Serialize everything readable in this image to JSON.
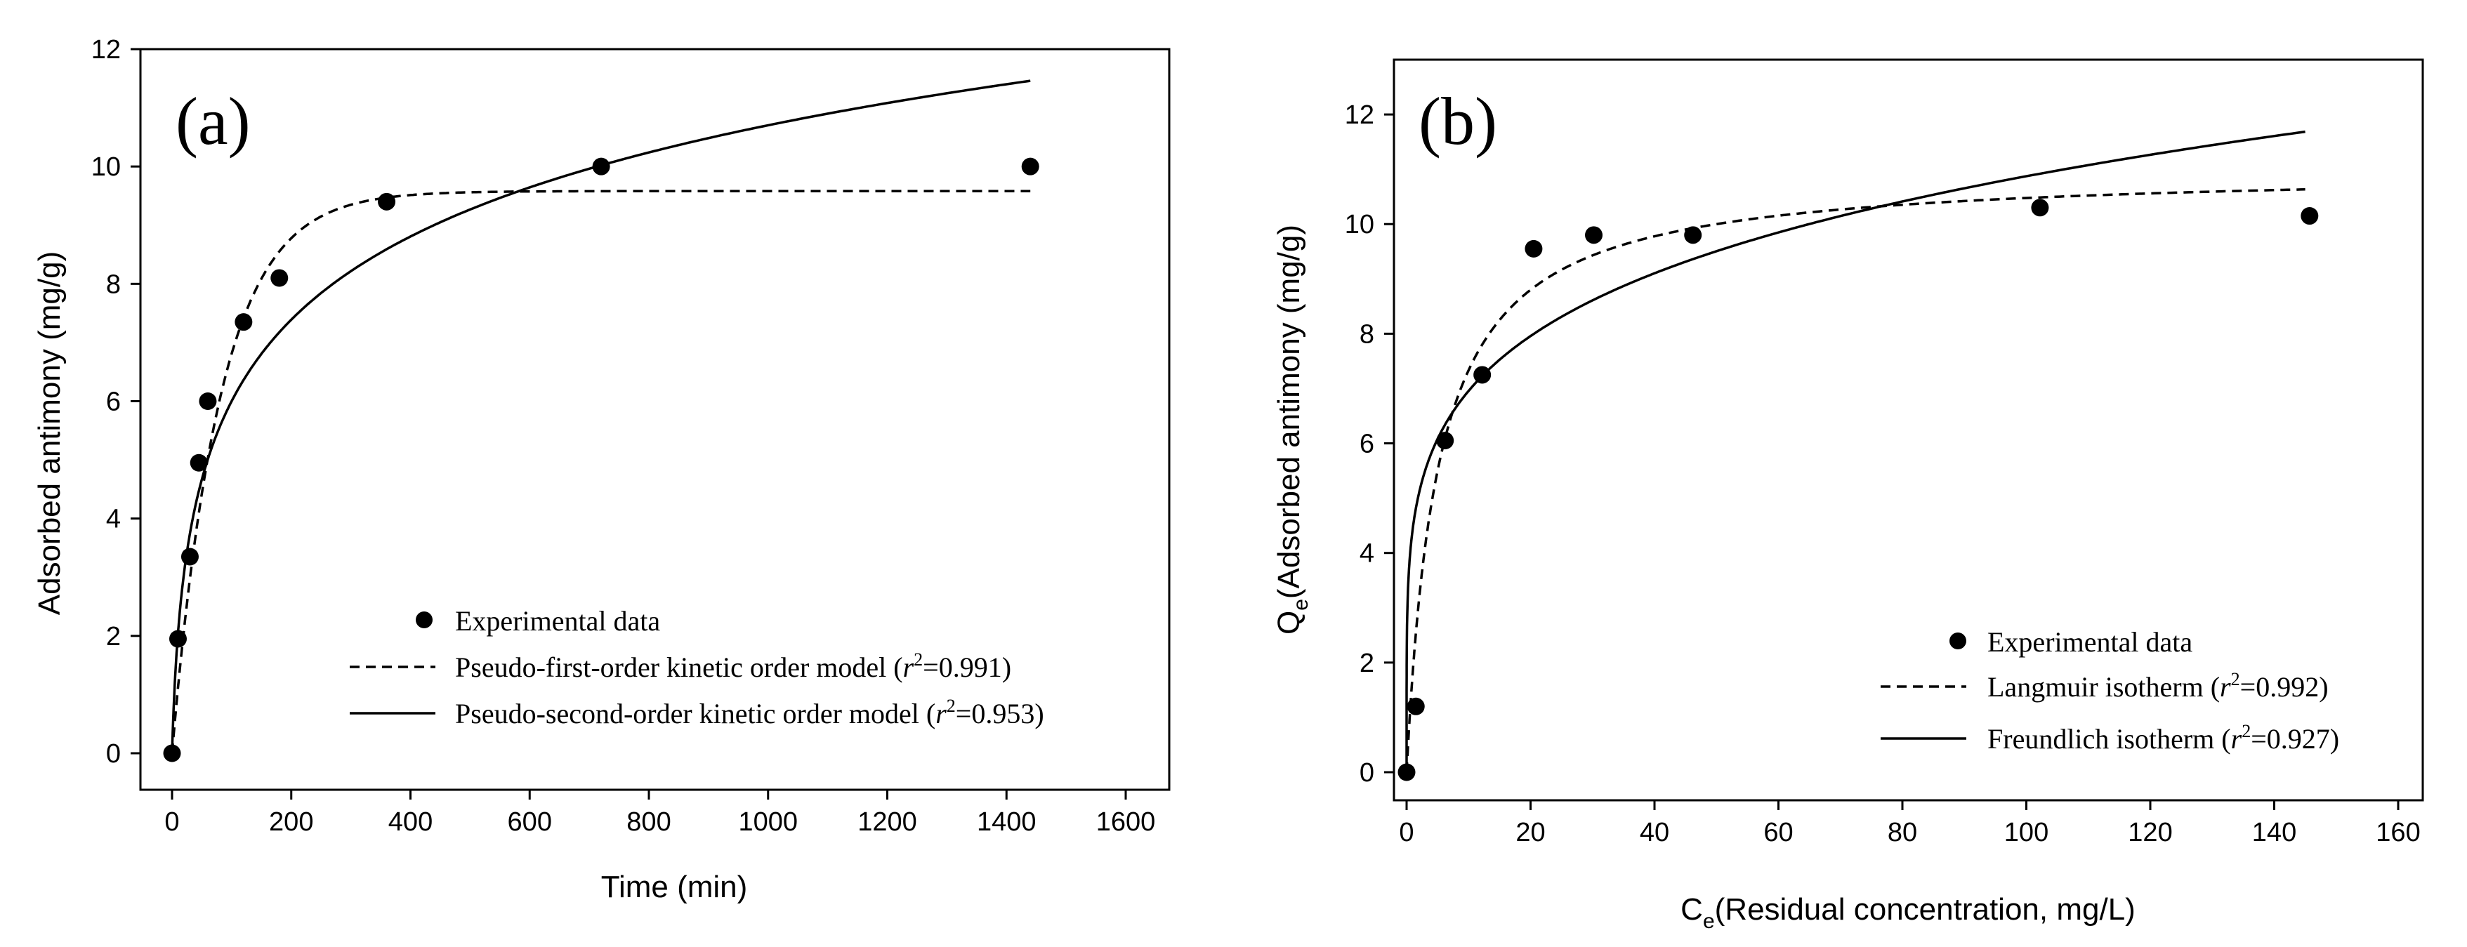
{
  "chart_data": [
    {
      "type": "scatter",
      "panel_label": "(a)",
      "xlabel": "Time (min)",
      "ylabel": "Adsorbed antimony (mg/g)",
      "xlim": [
        0,
        1600
      ],
      "ylim": [
        0,
        12
      ],
      "xticks": [
        0,
        200,
        400,
        600,
        800,
        1000,
        1200,
        1400,
        1600
      ],
      "yticks": [
        0,
        2,
        4,
        6,
        8,
        10,
        12
      ],
      "series": [
        {
          "name": "Experimental data",
          "kind": "points",
          "x": [
            0,
            10,
            30,
            45,
            60,
            120,
            180,
            360,
            720,
            1440
          ],
          "y": [
            0,
            1.95,
            3.35,
            4.95,
            6.0,
            7.35,
            8.1,
            9.4,
            10.0,
            10.0
          ]
        },
        {
          "name": "Pseudo-first-order kinetic order model",
          "kind": "dashed",
          "model": "pfo",
          "qe": 9.58,
          "k": 0.0124,
          "x_max": 1440,
          "r2": "0.991"
        },
        {
          "name": "Pseudo-second-order kinetic order model",
          "kind": "solid",
          "model": "psd",
          "a": 3.2,
          "b": 0.0428,
          "n": 0.5,
          "x_max": 1440,
          "r2": "0.953"
        }
      ],
      "legend": {
        "placement": "bottom-right",
        "entries": [
          {
            "label": "Experimental data",
            "r2": ""
          },
          {
            "label": "Pseudo-first-order kinetic order model (",
            "r2": "0.991"
          },
          {
            "label": "Pseudo-second-order kinetic order model (",
            "r2": "0.953"
          }
        ]
      }
    },
    {
      "type": "scatter",
      "panel_label": "(b)",
      "xlabel_main": "C",
      "xlabel_sub": "e",
      "xlabel_rest": "(Residual concentration, mg/L)",
      "ylabel_main": "Q",
      "ylabel_sub": "e",
      "ylabel_rest": "(Adsorbed antimony (mg/g)",
      "xlim": [
        0,
        160
      ],
      "ylim": [
        0,
        13
      ],
      "xticks": [
        0,
        20,
        40,
        60,
        80,
        100,
        120,
        140,
        160
      ],
      "yticks": [
        0,
        2,
        4,
        6,
        8,
        10,
        12
      ],
      "series": [
        {
          "name": "Experimental data",
          "kind": "points",
          "x": [
            0,
            1.5,
            6.2,
            12.2,
            20.5,
            30.2,
            46.2,
            102.2,
            145.7
          ],
          "y": [
            0,
            1.2,
            6.05,
            7.25,
            9.55,
            9.8,
            9.8,
            10.3,
            10.15
          ]
        },
        {
          "name": "Langmuir isotherm",
          "kind": "dashed",
          "model": "langmuir",
          "qmax": 11.0,
          "KL": 0.2,
          "x_max": 145,
          "r2": "0.992"
        },
        {
          "name": "Freundlich isotherm",
          "kind": "solid",
          "model": "freundlich",
          "KF": 4.45,
          "n": 0.194,
          "x_max": 145,
          "r2": "0.927"
        }
      ],
      "legend": {
        "placement": "bottom-right",
        "entries": [
          {
            "label": "Experimental data",
            "r2": ""
          },
          {
            "label": "Langmuir isotherm (",
            "r2": "0.992"
          },
          {
            "label": "Freundlich isotherm (",
            "r2": "0.927"
          }
        ]
      }
    }
  ],
  "legend_common": {
    "r_symbol": "r",
    "r_power": "2",
    "equals": "=",
    "close_paren": ")"
  }
}
